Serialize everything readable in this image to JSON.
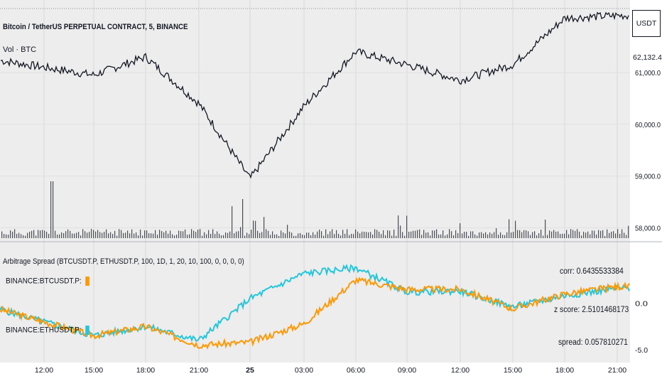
{
  "header": {
    "symbol_title": "Bitcoin / TetherUS PERPETUAL CONTRACT, 5, BINANCE",
    "volume_label": "Vol · BTC",
    "currency": "USDT",
    "last_price": "62,132.4"
  },
  "indicator": {
    "title": "Arbitrage Spread (BTCUSDT.P, ETHUSDT.P, 100, 1D, 1, 20, 10, 100, 0, 0, 0, 0)",
    "series1_label": "BINANCE:BTCUSDT.P:",
    "series2_label": "BINANCE:ETHUSDT.P:",
    "corr_text": "corr: 0.6435533384",
    "zscore_text": "z score: 2.5101468173",
    "spread_text": "spread: 0.057810271"
  },
  "colors": {
    "background": "#ffffff",
    "pane_bg": "#ededed",
    "candles": "#131722",
    "series1": "#ff9800",
    "series2": "#26c6da"
  },
  "chart_data": [
    {
      "type": "line",
      "title": "Bitcoin / TetherUS PERPETUAL CONTRACT, 5, BINANCE",
      "y_axis_ticks": [
        "58,000.0",
        "59,000.0",
        "60,000.0",
        "61,000.0"
      ],
      "ylim": [
        57800,
        62400
      ],
      "x_ticks": [
        "12:00",
        "15:00",
        "18:00",
        "21:00",
        "25",
        "03:00",
        "06:00",
        "09:00",
        "12:00",
        "15:00",
        "18:00",
        "21:00"
      ],
      "series": [
        {
          "x": [
            "12:00",
            "15:00",
            "18:00",
            "21:00",
            "25",
            "03:00",
            "06:00",
            "09:00",
            "12:00",
            "15:00",
            "18:00",
            "21:00"
          ],
          "y": [
            61100,
            60950,
            61300,
            60400,
            58950,
            60350,
            61400,
            61150,
            60850,
            61150,
            62050,
            62100
          ]
        }
      ],
      "last_price": 62132.4,
      "volume_note": "Vol · BTC"
    },
    {
      "type": "line",
      "title": "Arbitrage Spread (BTCUSDT.P, ETHUSDT.P, 100, 1D, 1, 20, 10, 100, 0, 0, 0, 0)",
      "y_axis_ticks": [
        "0.0",
        "-5.0"
      ],
      "ylim": [
        -6,
        6
      ],
      "x": [
        "12:00",
        "15:00",
        "18:00",
        "21:00",
        "25",
        "03:00",
        "06:00",
        "09:00",
        "12:00",
        "15:00",
        "18:00",
        "21:00"
      ],
      "series": [
        {
          "name": "BINANCE:BTCUSDT.P:",
          "color": "#ff9800",
          "values": [
            -2.0,
            -3.5,
            -2.5,
            -4.5,
            -4.2,
            -2.2,
            2.5,
            1.5,
            1.5,
            -0.6,
            1.0,
            1.8
          ]
        },
        {
          "name": "BINANCE:ETHUSDT.P:",
          "color": "#26c6da",
          "values": [
            -2.0,
            -3.5,
            -2.5,
            -4.0,
            0.5,
            3.2,
            3.8,
            1.2,
            1.3,
            -0.4,
            0.8,
            1.6
          ]
        }
      ],
      "annotations": [
        "corr: 0.6435533384",
        "z score: 2.5101468173",
        "spread: 0.057810271"
      ]
    }
  ]
}
